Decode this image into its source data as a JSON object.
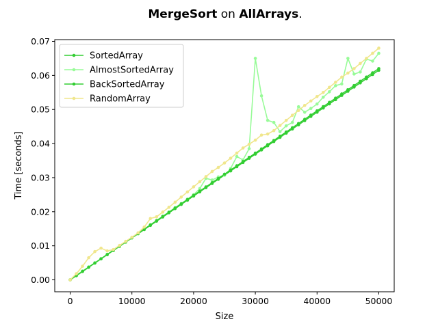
{
  "chart_data": {
    "type": "line",
    "title_parts": [
      {
        "text": "MergeSort",
        "bold": true
      },
      {
        "text": " on ",
        "bold": false
      },
      {
        "text": "AllArrays",
        "bold": true
      },
      {
        "text": ".",
        "bold": false
      }
    ],
    "xlabel": "Size",
    "ylabel": "Time [seconds]",
    "xlim": [
      -2500,
      52500
    ],
    "ylim": [
      -0.0035,
      0.0705
    ],
    "xticks": [
      0,
      10000,
      20000,
      30000,
      40000,
      50000
    ],
    "xtick_labels": [
      "0",
      "10000",
      "20000",
      "30000",
      "40000",
      "50000"
    ],
    "yticks": [
      0.0,
      0.01,
      0.02,
      0.03,
      0.04,
      0.05,
      0.06,
      0.07
    ],
    "ytick_labels": [
      "0.00",
      "0.01",
      "0.02",
      "0.03",
      "0.04",
      "0.05",
      "0.06",
      "0.07"
    ],
    "grid": false,
    "legend_position": "top-left",
    "x": [
      0,
      1000,
      2000,
      3000,
      4000,
      5000,
      6000,
      7000,
      8000,
      9000,
      10000,
      11000,
      12000,
      13000,
      14000,
      15000,
      16000,
      17000,
      18000,
      19000,
      20000,
      21000,
      22000,
      23000,
      24000,
      25000,
      26000,
      27000,
      28000,
      29000,
      30000,
      31000,
      32000,
      33000,
      34000,
      35000,
      36000,
      37000,
      38000,
      39000,
      40000,
      41000,
      42000,
      43000,
      44000,
      45000,
      46000,
      47000,
      48000,
      49000,
      50000
    ],
    "series": [
      {
        "name": "SortedArray",
        "color": "#32cd32",
        "values": [
          0.0,
          0.00123,
          0.00246,
          0.00369,
          0.00492,
          0.00615,
          0.00738,
          0.00861,
          0.00984,
          0.01107,
          0.0123,
          0.01353,
          0.01476,
          0.01599,
          0.01722,
          0.01845,
          0.01968,
          0.02091,
          0.02214,
          0.02337,
          0.0246,
          0.02583,
          0.02706,
          0.02829,
          0.02952,
          0.03075,
          0.03198,
          0.03321,
          0.03444,
          0.03567,
          0.0369,
          0.03813,
          0.03936,
          0.04059,
          0.04182,
          0.04305,
          0.04428,
          0.04551,
          0.04674,
          0.04797,
          0.0492,
          0.05043,
          0.05166,
          0.05289,
          0.05412,
          0.05535,
          0.05658,
          0.05781,
          0.05904,
          0.06027,
          0.0615
        ]
      },
      {
        "name": "AlmostSortedArray",
        "color": "#98fb98",
        "values": [
          0.0,
          0.00135,
          0.0026,
          0.0038,
          0.005,
          0.0062,
          0.0075,
          0.0087,
          0.01,
          0.0112,
          0.0124,
          0.0137,
          0.0149,
          0.0162,
          0.0174,
          0.0187,
          0.0199,
          0.0212,
          0.0224,
          0.0237,
          0.025,
          0.0268,
          0.0298,
          0.0293,
          0.0302,
          0.0307,
          0.0327,
          0.0362,
          0.0352,
          0.0385,
          0.065,
          0.054,
          0.0468,
          0.0462,
          0.0435,
          0.0452,
          0.0462,
          0.0508,
          0.0492,
          0.0503,
          0.0516,
          0.0536,
          0.0552,
          0.057,
          0.0575,
          0.065,
          0.0604,
          0.061,
          0.0648,
          0.0642,
          0.0665
        ]
      },
      {
        "name": "BackSortedArray",
        "color": "#32cd32",
        "values": [
          0.0,
          0.00124,
          0.00248,
          0.00372,
          0.00496,
          0.0062,
          0.00744,
          0.00868,
          0.00992,
          0.01116,
          0.0124,
          0.01364,
          0.01488,
          0.01612,
          0.01736,
          0.0186,
          0.01984,
          0.02108,
          0.02232,
          0.02356,
          0.0248,
          0.02604,
          0.02728,
          0.02852,
          0.02976,
          0.031,
          0.03224,
          0.03348,
          0.03472,
          0.03596,
          0.0372,
          0.03844,
          0.03968,
          0.04092,
          0.04216,
          0.0434,
          0.04464,
          0.04588,
          0.04712,
          0.04836,
          0.0496,
          0.05084,
          0.05208,
          0.05332,
          0.05456,
          0.0558,
          0.05704,
          0.05828,
          0.05952,
          0.06076,
          0.062
        ]
      },
      {
        "name": "RandomArray",
        "color": "#f0e68c",
        "values": [
          0.0,
          0.0018,
          0.004,
          0.0065,
          0.0083,
          0.0093,
          0.0085,
          0.0089,
          0.0101,
          0.0113,
          0.0125,
          0.0138,
          0.0155,
          0.018,
          0.0185,
          0.0199,
          0.0213,
          0.0228,
          0.0243,
          0.0258,
          0.0273,
          0.0288,
          0.0303,
          0.0318,
          0.033,
          0.0343,
          0.0357,
          0.0372,
          0.0387,
          0.0398,
          0.041,
          0.0425,
          0.0428,
          0.0438,
          0.0453,
          0.0468,
          0.0483,
          0.0497,
          0.0512,
          0.0525,
          0.0538,
          0.055,
          0.0565,
          0.058,
          0.0595,
          0.0607,
          0.062,
          0.0635,
          0.065,
          0.0665,
          0.068
        ]
      }
    ]
  }
}
